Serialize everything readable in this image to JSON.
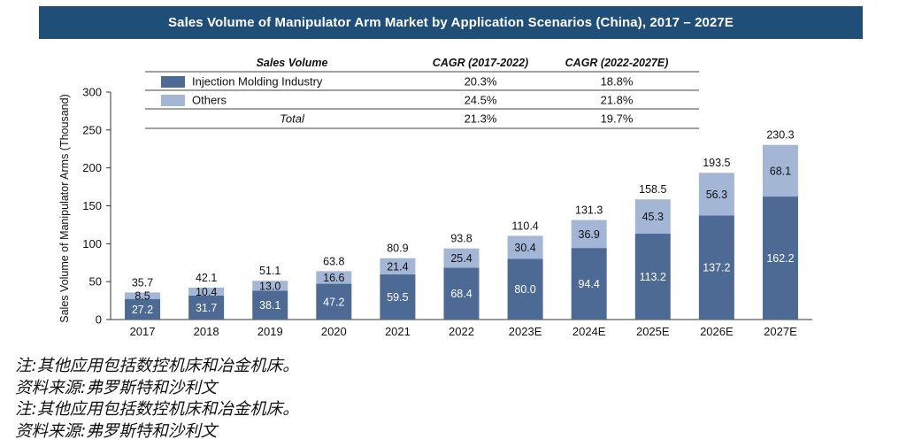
{
  "title": "Sales Volume of Manipulator Arm Market by Application Scenarios (China), 2017 – 2027E",
  "chart_data": {
    "type": "bar",
    "stacked": true,
    "title": "Sales Volume of Manipulator Arm Market by Application Scenarios (China), 2017 – 2027E",
    "xlabel": "",
    "ylabel": "Sales Volume of Manipulator Arms (Thousand)",
    "ylim": [
      0,
      300
    ],
    "yticks": [
      0,
      50,
      100,
      150,
      200,
      250,
      300
    ],
    "categories": [
      "2017",
      "2018",
      "2019",
      "2020",
      "2021",
      "2022",
      "2023E",
      "2024E",
      "2025E",
      "2026E",
      "2027E"
    ],
    "series": [
      {
        "name": "Injection Molding Industry",
        "color": "#4d6a94",
        "label_color": "#ffffff",
        "values": [
          27.2,
          31.7,
          38.1,
          47.2,
          59.5,
          68.4,
          80.0,
          94.4,
          113.2,
          137.2,
          162.2
        ]
      },
      {
        "name": "Others",
        "color": "#a3b6d6",
        "label_color": "#111111",
        "values": [
          8.5,
          10.4,
          13.0,
          16.6,
          21.4,
          25.4,
          30.4,
          36.9,
          45.3,
          56.3,
          68.1
        ]
      }
    ],
    "totals": [
      35.7,
      42.1,
      51.1,
      63.8,
      80.9,
      93.8,
      110.4,
      131.3,
      158.5,
      193.5,
      230.3
    ],
    "value_labels": {
      "series0": [
        "27.2",
        "31.7",
        "38.1",
        "47.2",
        "59.5",
        "68.4",
        "80.0",
        "94.4",
        "113.2",
        "137.2",
        "162.2"
      ],
      "series1": [
        "8.5",
        "10.4",
        "13.0",
        "16.6",
        "21.4",
        "25.4",
        "30.4",
        "36.9",
        "45.3",
        "56.3",
        "68.1"
      ],
      "totals": [
        "35.7",
        "42.1",
        "51.1",
        "63.8",
        "80.9",
        "93.8",
        "110.4",
        "131.3",
        "158.5",
        "193.5",
        "230.3"
      ]
    },
    "grid": false,
    "legend_table": {
      "header": [
        "Sales Volume",
        "CAGR (2017-2022)",
        "CAGR (2022-2027E)"
      ],
      "rows": [
        {
          "name": "Injection Molding Industry",
          "color": "#4d6a94",
          "c1": "20.3%",
          "c2": "18.8%"
        },
        {
          "name": "Others",
          "color": "#a3b6d6",
          "c1": "24.5%",
          "c2": "21.8%"
        },
        {
          "name": "Total",
          "color": "",
          "c1": "21.3%",
          "c2": "19.7%"
        }
      ]
    }
  },
  "notes": [
    "注:其他应用包括数控机床和冶金机床。",
    "资料来源:弗罗斯特和沙利文",
    "注:其他应用包括数控机床和冶金机床。",
    "资料来源:弗罗斯特和沙利文"
  ]
}
